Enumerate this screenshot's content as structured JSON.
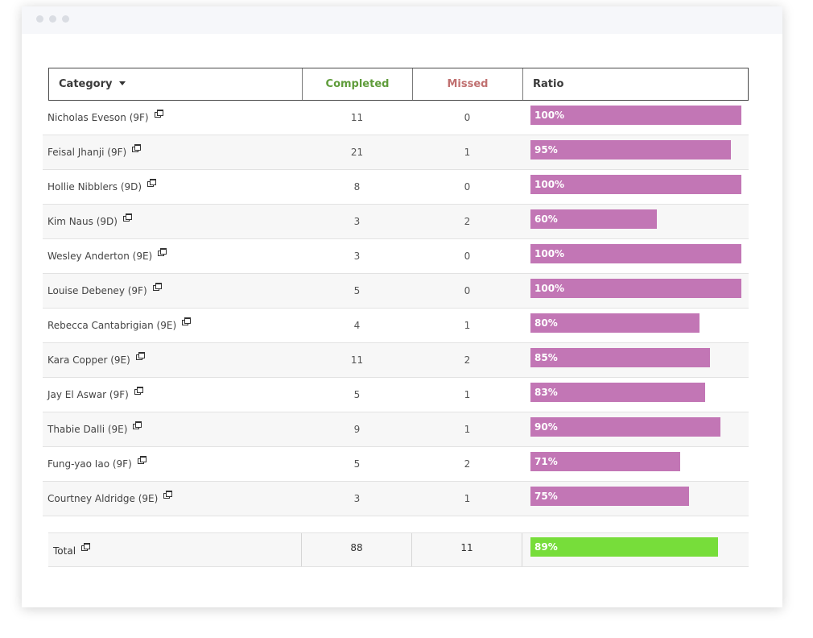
{
  "table": {
    "columns": {
      "category": "Category",
      "completed": "Completed",
      "missed": "Missed",
      "ratio": "Ratio"
    },
    "rows": [
      {
        "name": "Nicholas Eveson (9F)",
        "completed": "11",
        "missed": "0",
        "ratio_label": "100%",
        "ratio": 1.0
      },
      {
        "name": "Feisal Jhanji (9F)",
        "completed": "21",
        "missed": "1",
        "ratio_label": "95%",
        "ratio": 0.95
      },
      {
        "name": "Hollie Nibblers (9D)",
        "completed": "8",
        "missed": "0",
        "ratio_label": "100%",
        "ratio": 1.0
      },
      {
        "name": "Kim Naus (9D)",
        "completed": "3",
        "missed": "2",
        "ratio_label": "60%",
        "ratio": 0.6
      },
      {
        "name": "Wesley Anderton (9E)",
        "completed": "3",
        "missed": "0",
        "ratio_label": "100%",
        "ratio": 1.0
      },
      {
        "name": "Louise Debeney (9F)",
        "completed": "5",
        "missed": "0",
        "ratio_label": "100%",
        "ratio": 1.0
      },
      {
        "name": "Rebecca Cantabrigian (9E)",
        "completed": "4",
        "missed": "1",
        "ratio_label": "80%",
        "ratio": 0.8
      },
      {
        "name": "Kara Copper (9E)",
        "completed": "11",
        "missed": "2",
        "ratio_label": "85%",
        "ratio": 0.85
      },
      {
        "name": "Jay El Aswar (9F)",
        "completed": "5",
        "missed": "1",
        "ratio_label": "83%",
        "ratio": 0.83
      },
      {
        "name": "Thabie Dalli (9E)",
        "completed": "9",
        "missed": "1",
        "ratio_label": "90%",
        "ratio": 0.9
      },
      {
        "name": "Fung-yao Iao (9F)",
        "completed": "5",
        "missed": "2",
        "ratio_label": "71%",
        "ratio": 0.71
      },
      {
        "name": "Courtney Aldridge (9E)",
        "completed": "3",
        "missed": "1",
        "ratio_label": "75%",
        "ratio": 0.75
      }
    ],
    "total": {
      "name": "Total",
      "completed": "88",
      "missed": "11",
      "ratio_label": "89%",
      "ratio": 0.89
    }
  },
  "colors": {
    "completed_header": "#5f9c3a",
    "missed_header": "#c07070",
    "bar": "#c276b5",
    "total_bar": "#77dd3a"
  },
  "icons": {
    "sort": "caret-down-icon",
    "open": "external-link-icon"
  }
}
